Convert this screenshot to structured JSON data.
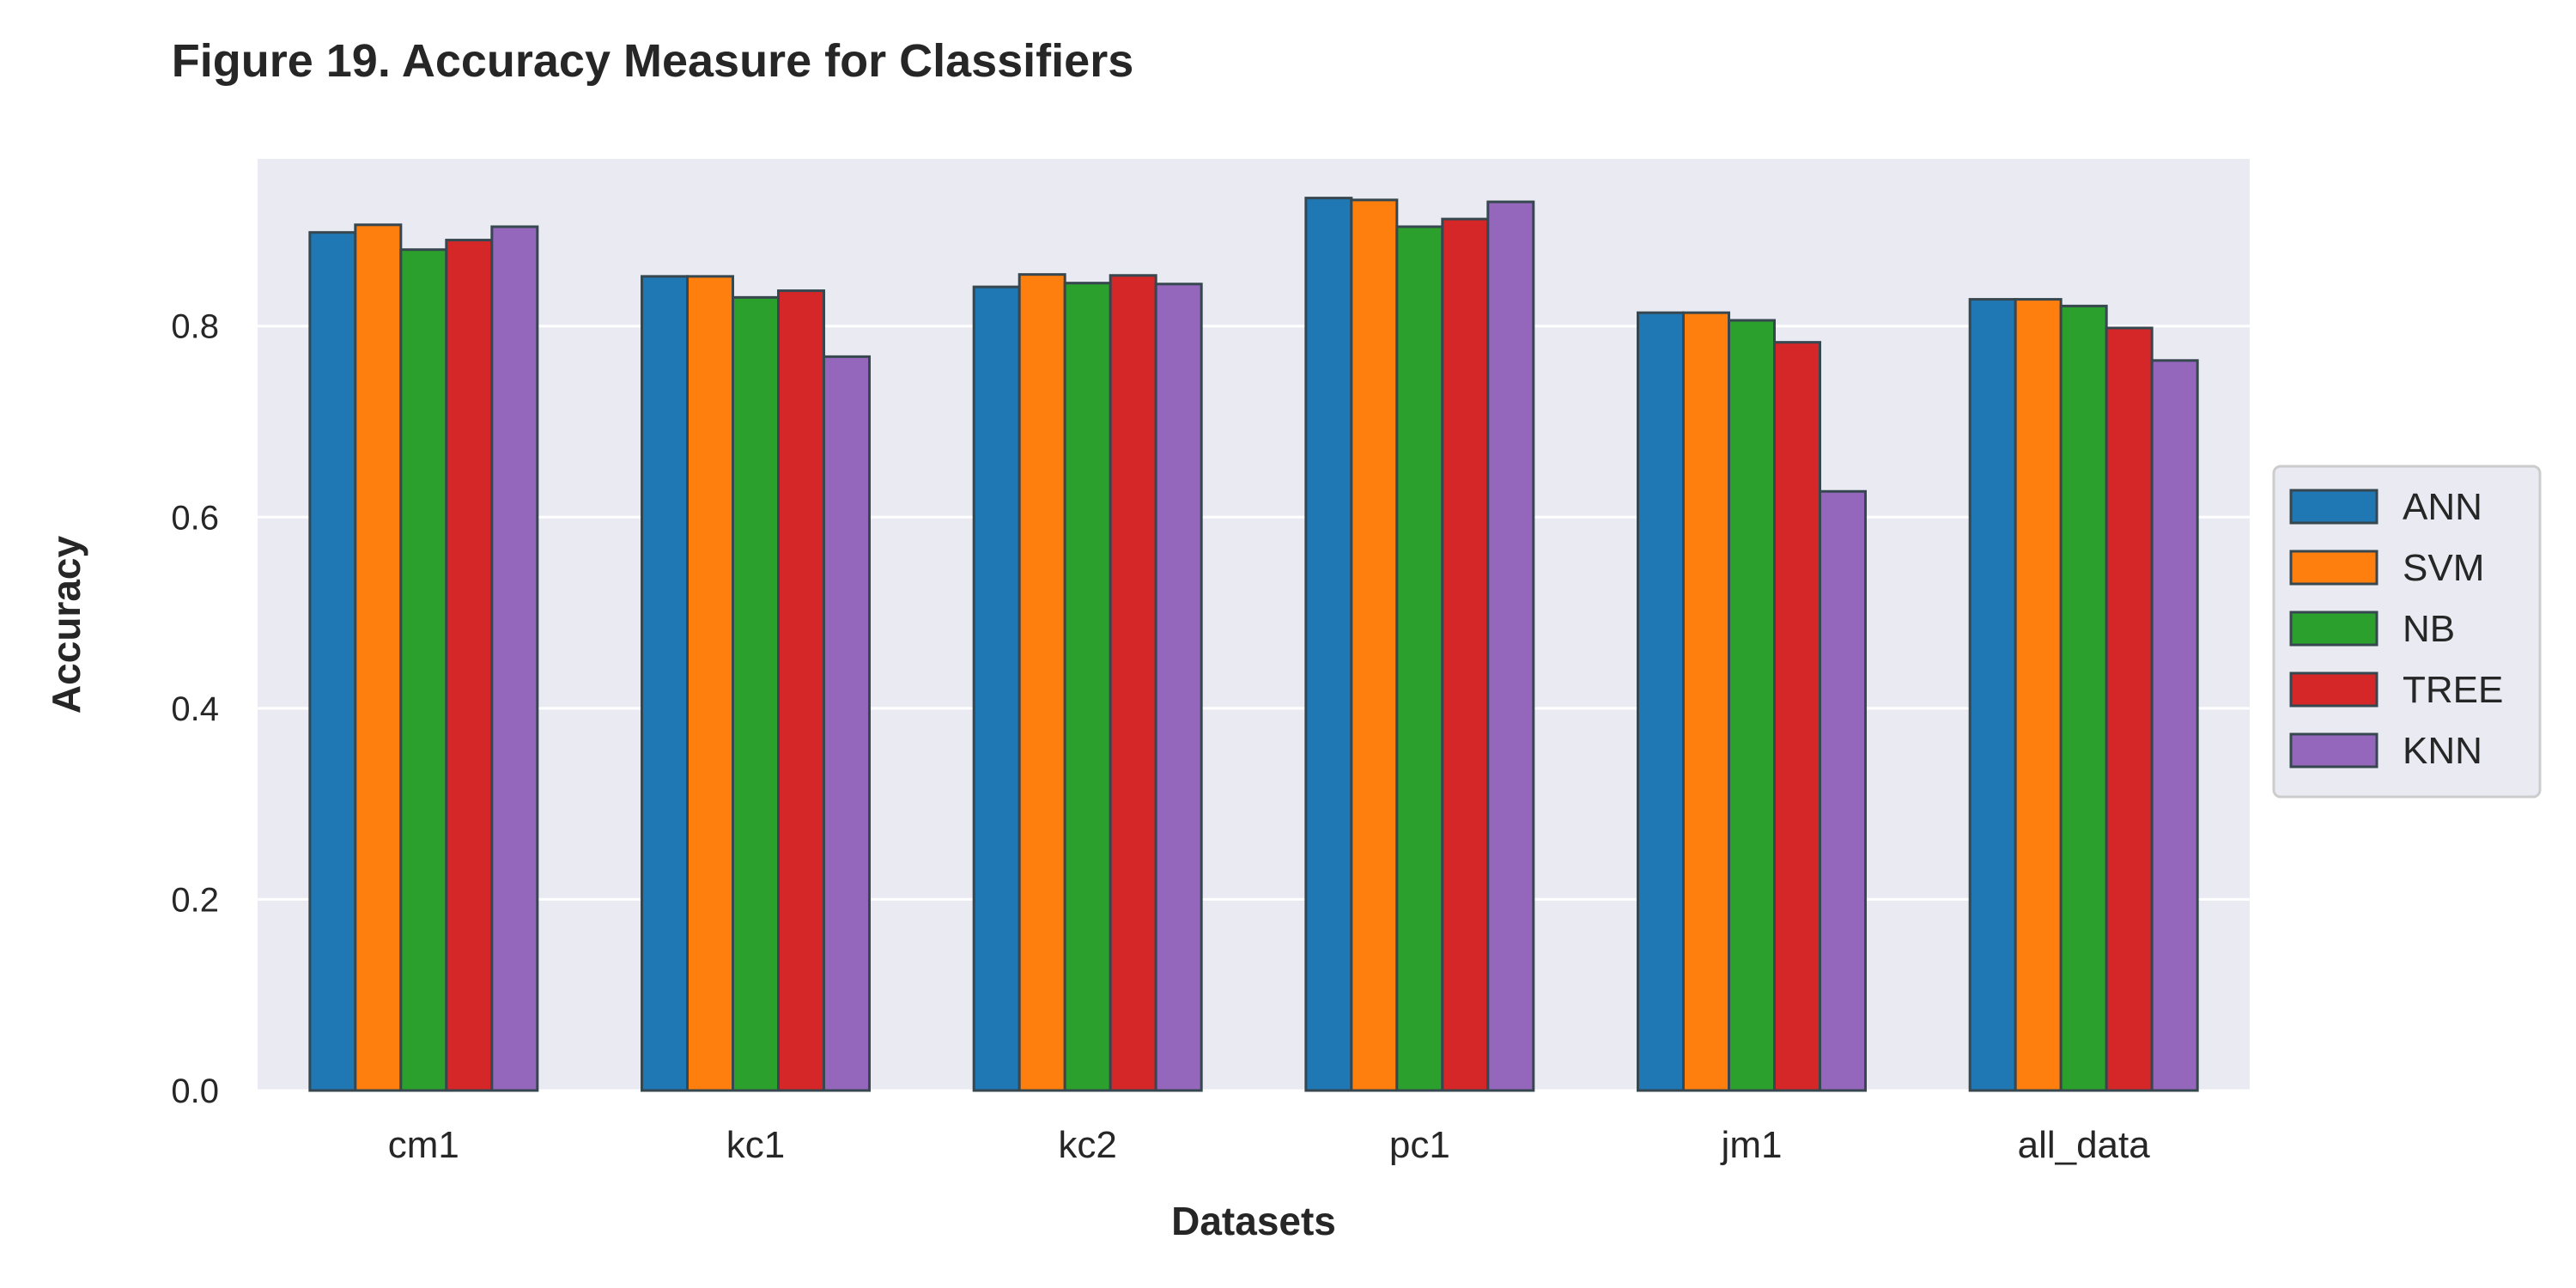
{
  "chart_data": {
    "type": "bar",
    "title": "Figure 19.  Accuracy Measure for Classifiers",
    "xlabel": "Datasets",
    "ylabel": "Accuracy",
    "categories": [
      "cm1",
      "kc1",
      "kc2",
      "pc1",
      "jm1",
      "all_data"
    ],
    "series": [
      {
        "name": "ANN",
        "color": "#1f77b4",
        "values": [
          0.898,
          0.852,
          0.841,
          0.934,
          0.814,
          0.828
        ]
      },
      {
        "name": "SVM",
        "color": "#ff7f0e",
        "values": [
          0.906,
          0.852,
          0.854,
          0.932,
          0.814,
          0.828
        ]
      },
      {
        "name": "NB",
        "color": "#2ca02c",
        "values": [
          0.88,
          0.83,
          0.845,
          0.904,
          0.806,
          0.821
        ]
      },
      {
        "name": "TREE",
        "color": "#d62728",
        "values": [
          0.89,
          0.837,
          0.853,
          0.912,
          0.783,
          0.798
        ]
      },
      {
        "name": "KNN",
        "color": "#9467bd",
        "values": [
          0.904,
          0.768,
          0.844,
          0.93,
          0.627,
          0.764
        ]
      }
    ],
    "ylim": [
      0,
      0.975
    ],
    "yticks": [
      "0.0",
      "0.2",
      "0.4",
      "0.6",
      "0.8"
    ],
    "grid": true,
    "legend_position": "center-right",
    "plot_background": "#eaeaf2",
    "bar_edge_color": "#37474f"
  }
}
